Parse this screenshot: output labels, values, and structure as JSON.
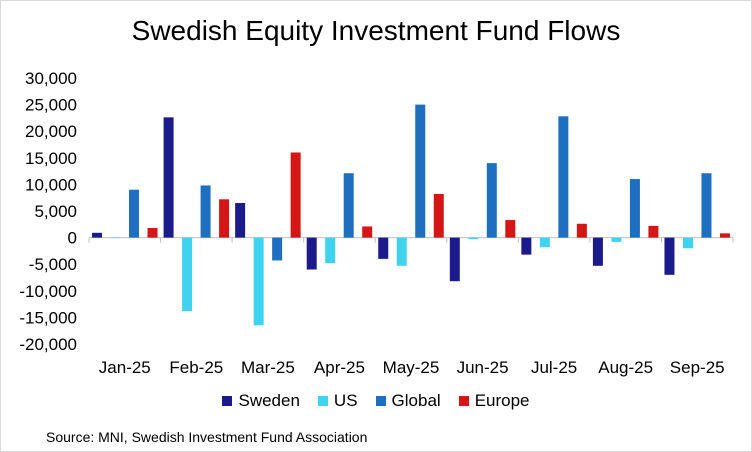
{
  "chart_data": {
    "type": "bar",
    "title": "Swedish Equity Investment Fund Flows",
    "categories": [
      "Jan-25",
      "Feb-25",
      "Mar-25",
      "Apr-25",
      "May-25",
      "Jun-25",
      "Jul-25",
      "Aug-25",
      "Sep-25"
    ],
    "series": [
      {
        "name": "Sweden",
        "color": "#1b1b8c",
        "values": [
          900,
          22600,
          6500,
          -6000,
          -4000,
          -8200,
          -3200,
          -5300,
          -7000
        ]
      },
      {
        "name": "US",
        "color": "#3fd3f0",
        "values": [
          0,
          -13800,
          -16500,
          -4800,
          -5300,
          -300,
          -1800,
          -800,
          -2000
        ]
      },
      {
        "name": "Global",
        "color": "#1e6fc0",
        "values": [
          9000,
          9800,
          -4300,
          12100,
          25000,
          14000,
          22800,
          11000,
          12100
        ]
      },
      {
        "name": "Europe",
        "color": "#d41616",
        "values": [
          1800,
          7200,
          16000,
          2100,
          8200,
          3300,
          2600,
          2200,
          800
        ]
      }
    ],
    "yticks": [
      "30,000",
      "25,000",
      "20,000",
      "15,000",
      "10,000",
      "5,000",
      "0",
      "-5,000",
      "-10,000",
      "-15,000",
      "-20,000"
    ],
    "ylim": [
      -20000,
      30000
    ],
    "xlabel": "",
    "ylabel": "",
    "legend_position": "bottom",
    "source": "Source: MNI,  Swedish Investment Fund Association"
  }
}
